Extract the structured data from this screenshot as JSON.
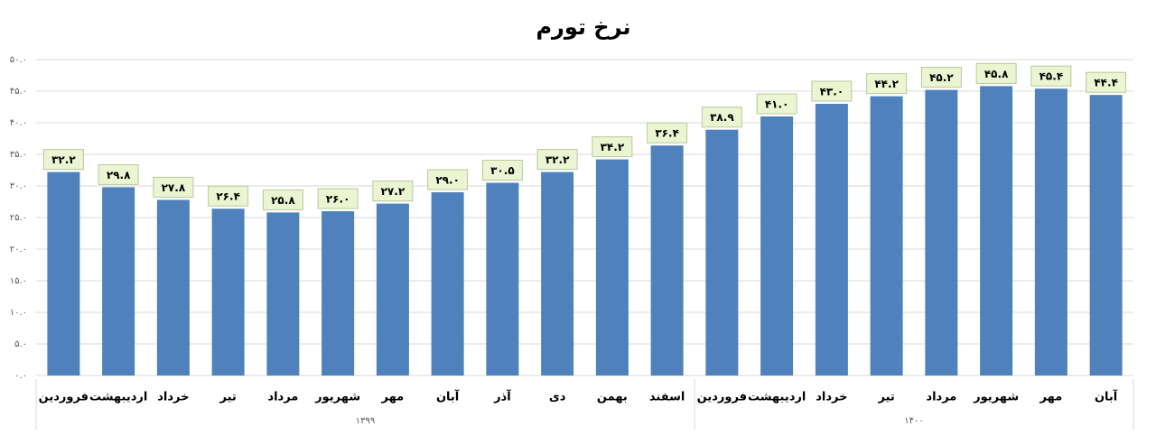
{
  "chart_data": {
    "type": "bar",
    "title": "نرخ تورم",
    "color": "#4f81bd",
    "grid": true,
    "ylim": [
      0,
      50
    ],
    "yticks": [
      {
        "value": 0,
        "label": "۰.۰"
      },
      {
        "value": 5,
        "label": "۵.۰"
      },
      {
        "value": 10,
        "label": "۱۰.۰"
      },
      {
        "value": 15,
        "label": "۱۵.۰"
      },
      {
        "value": 20,
        "label": "۲۰.۰"
      },
      {
        "value": 25,
        "label": "۲۵.۰"
      },
      {
        "value": 30,
        "label": "۳۰.۰"
      },
      {
        "value": 35,
        "label": "۳۵.۰"
      },
      {
        "value": 40,
        "label": "۴۰.۰"
      },
      {
        "value": 45,
        "label": "۴۵.۰"
      },
      {
        "value": 50,
        "label": "۵۰.۰"
      }
    ],
    "groups": [
      {
        "name": "۱۳۹۹",
        "categories": [
          "فروردین",
          "اردیبهشت",
          "خرداد",
          "تیر",
          "مرداد",
          "شهریور",
          "مهر",
          "آبان",
          "آذر",
          "دی",
          "بهمن",
          "اسفند"
        ],
        "values": [
          32.2,
          29.8,
          27.8,
          26.4,
          25.8,
          26.0,
          27.2,
          29.0,
          30.5,
          32.2,
          34.2,
          36.4
        ],
        "value_labels": [
          "۳۲.۲",
          "۲۹.۸",
          "۲۷.۸",
          "۲۶.۴",
          "۲۵.۸",
          "۲۶.۰",
          "۲۷.۲",
          "۲۹.۰",
          "۳۰.۵",
          "۳۲.۲",
          "۳۴.۲",
          "۳۶.۴"
        ]
      },
      {
        "name": "۱۴۰۰",
        "categories": [
          "فروردین",
          "اردیبهشت",
          "خرداد",
          "تیر",
          "مرداد",
          "شهریور",
          "مهر",
          "آبان"
        ],
        "values": [
          38.9,
          41.0,
          43.0,
          44.2,
          45.2,
          45.8,
          45.4,
          44.4
        ],
        "value_labels": [
          "۳۸.۹",
          "۴۱.۰",
          "۴۳.۰",
          "۴۴.۲",
          "۴۵.۲",
          "۴۵.۸",
          "۴۵.۴",
          "۴۴.۴"
        ]
      }
    ]
  }
}
